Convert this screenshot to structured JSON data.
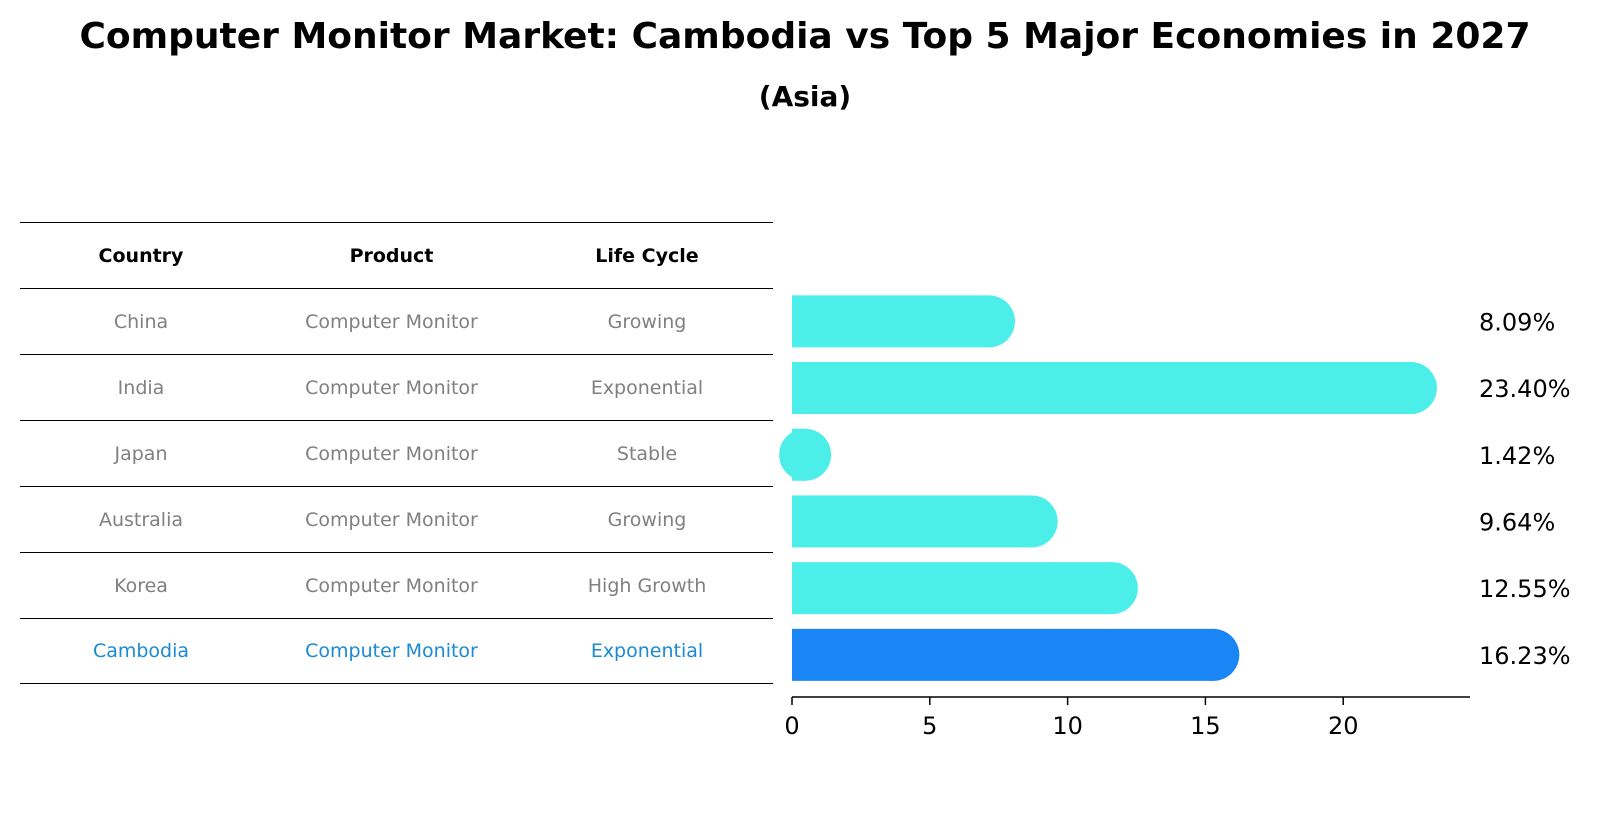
{
  "title": "Computer Monitor Market: Cambodia vs Top 5 Major Economies in 2027",
  "subtitle": "(Asia)",
  "table": {
    "headers": [
      "Country",
      "Product",
      "Life Cycle"
    ],
    "rows": [
      {
        "country": "China",
        "product": "Computer Monitor",
        "life_cycle": "Growing"
      },
      {
        "country": "India",
        "product": "Computer Monitor",
        "life_cycle": "Exponential"
      },
      {
        "country": "Japan",
        "product": "Computer Monitor",
        "life_cycle": "Stable"
      },
      {
        "country": "Australia",
        "product": "Computer Monitor",
        "life_cycle": "Growing"
      },
      {
        "country": "Korea",
        "product": "Computer Monitor",
        "life_cycle": "High Growth"
      },
      {
        "country": "Cambodia",
        "product": "Computer Monitor",
        "life_cycle": "Exponential"
      }
    ]
  },
  "colors": {
    "bar": "#4ceeea",
    "highlight_bar": "#1a86f5",
    "highlight_text": "#1a8ad4",
    "muted_text": "#808080"
  },
  "chart_data": {
    "type": "bar",
    "orientation": "horizontal",
    "categories": [
      "China",
      "India",
      "Japan",
      "Australia",
      "Korea",
      "Cambodia"
    ],
    "values": [
      8.09,
      23.4,
      1.42,
      9.64,
      12.55,
      16.23
    ],
    "value_labels": [
      "8.09%",
      "23.40%",
      "1.42%",
      "9.64%",
      "12.55%",
      "16.23%"
    ],
    "highlight": "Cambodia",
    "xlim": [
      0,
      24.6
    ],
    "xticks": [
      0,
      5,
      10,
      15,
      20
    ],
    "grid": false
  }
}
